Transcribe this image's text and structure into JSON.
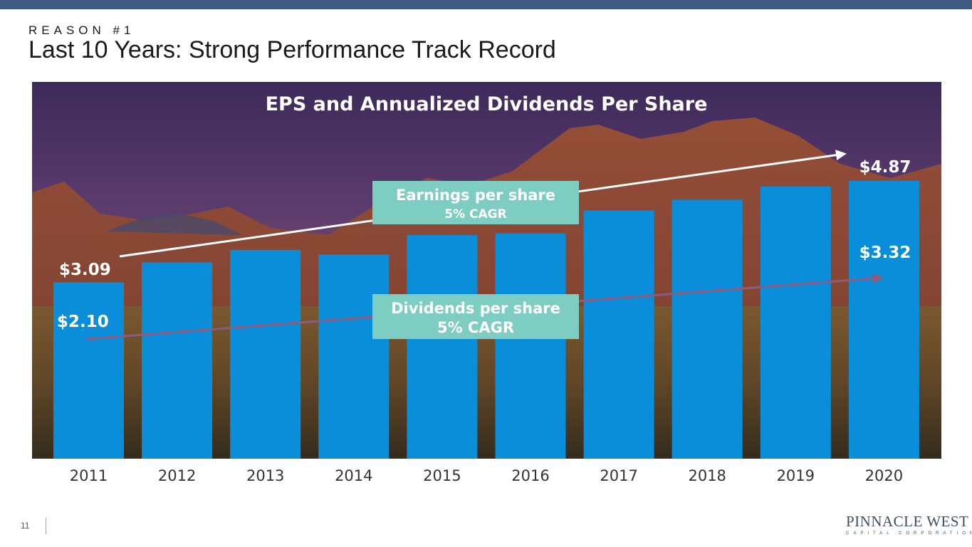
{
  "slide": {
    "kicker": "REASON #1",
    "title": "Last 10 Years: Strong Performance Track Record",
    "page_number": "11"
  },
  "logo": {
    "name": "PINNACLE WEST",
    "tagline": "CAPITAL CORPORATION"
  },
  "colors": {
    "bar": "#0a8ed9",
    "eps_arrow": "#ffffff",
    "dividend_arrow": "#8e5a7d",
    "callout_box": "#7ecdc2",
    "top_bar": "#3d5a80"
  },
  "chart_data": {
    "type": "bar",
    "title": "EPS and Annualized Dividends Per Share",
    "categories": [
      "2011",
      "2012",
      "2013",
      "2014",
      "2015",
      "2016",
      "2017",
      "2018",
      "2019",
      "2020"
    ],
    "series": [
      {
        "name": "Earnings per share",
        "values": [
          3.09,
          3.44,
          3.66,
          3.58,
          3.92,
          3.95,
          4.35,
          4.54,
          4.77,
          4.87
        ]
      }
    ],
    "ylim": [
      0,
      6
    ],
    "xlabel": "",
    "ylabel": "",
    "grid": false,
    "labels": {
      "eps_start": "$3.09",
      "eps_end": "$4.87",
      "div_start": "$2.10",
      "div_end": "$3.32"
    },
    "annotations": [
      {
        "line1": "Earnings per share",
        "line2": "5% CAGR"
      },
      {
        "line1": "Dividends per share",
        "line2": "5% CAGR"
      }
    ],
    "trend_lines": {
      "eps": [
        3.09,
        4.87
      ],
      "dividends": [
        2.1,
        3.32
      ]
    }
  }
}
